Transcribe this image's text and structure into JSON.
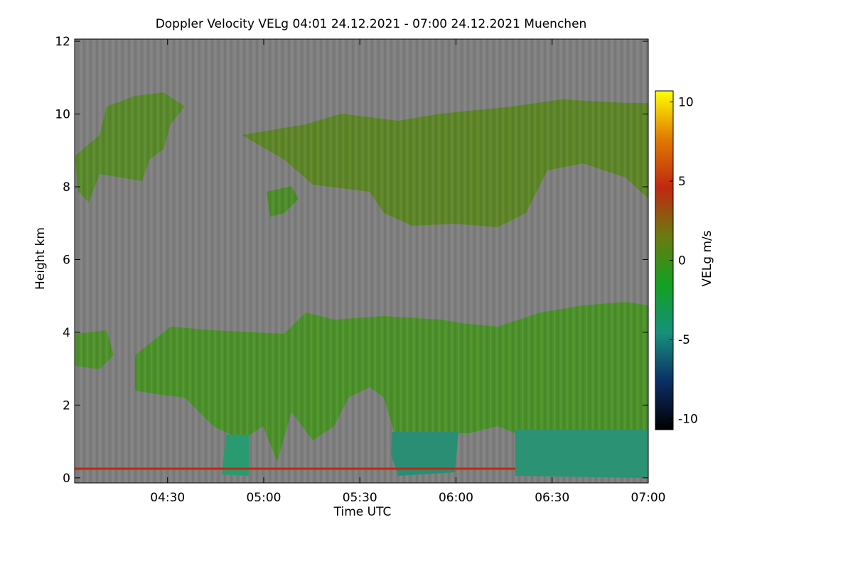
{
  "chart_data": {
    "type": "heatmap",
    "title": "Doppler Velocity VELg   04:01 24.12.2021 - 07:00 24.12.2021 Muenchen",
    "xlabel": "Time UTC",
    "ylabel": "Height km",
    "xlim": [
      4.0167,
      7.0
    ],
    "xticks": [
      {
        "value": 4.5,
        "label": "04:30"
      },
      {
        "value": 5.0,
        "label": "05:00"
      },
      {
        "value": 5.5,
        "label": "05:30"
      },
      {
        "value": 6.0,
        "label": "06:00"
      },
      {
        "value": 6.5,
        "label": "06:30"
      },
      {
        "value": 7.0,
        "label": "07:00"
      }
    ],
    "ylim": [
      -0.14,
      12.06
    ],
    "yticks": [
      0,
      2,
      4,
      6,
      8,
      10,
      12
    ],
    "colorbar": {
      "label": "VELg m/s",
      "lim": [
        -10.7,
        10.7
      ],
      "ticks": [
        -10,
        -5,
        0,
        5,
        10
      ],
      "colors": [
        "#000000",
        "#0b2f66",
        "#16907c",
        "#12a020",
        "#6b7a10",
        "#c02810",
        "#e07a00",
        "#ffff00"
      ]
    }
  }
}
